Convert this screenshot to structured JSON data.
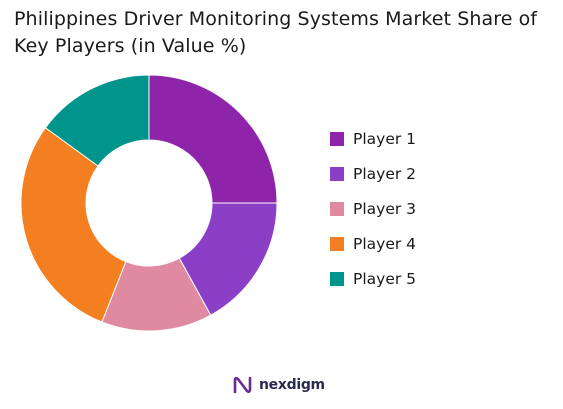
{
  "chart_data": {
    "type": "pie",
    "title": "Philippines Driver Monitoring Systems Market Share of Key Players (in Value %)",
    "donut": true,
    "categories": [
      "Player 1",
      "Player 2",
      "Player 3",
      "Player 4",
      "Player 5"
    ],
    "values": [
      25,
      17,
      14,
      29,
      15
    ],
    "colors": [
      "#8E24AA",
      "#8B3FC6",
      "#E08AA1",
      "#F47F20",
      "#00958C"
    ],
    "legend_position": "right"
  },
  "brand": {
    "name": "nexdigm",
    "color": "#6A2C91"
  }
}
